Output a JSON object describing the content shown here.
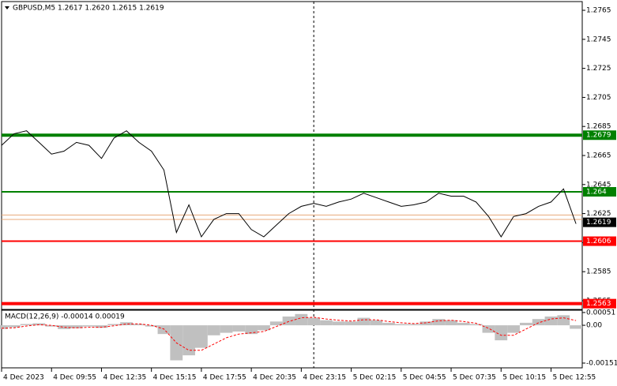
{
  "chart_data": [
    {
      "type": "line",
      "title": "GBPUSD,M5  1.2617 1.2620 1.2615 1.2619",
      "color": "#000000",
      "values": [
        1.2672,
        1.268,
        1.2682,
        1.2674,
        1.2666,
        1.2668,
        1.2674,
        1.2672,
        1.2663,
        1.2677,
        1.2682,
        1.2674,
        1.2668,
        1.2655,
        1.2612,
        1.2631,
        1.2609,
        1.2621,
        1.2625,
        1.2625,
        1.2614,
        1.2609,
        1.2617,
        1.2625,
        1.263,
        1.2632,
        1.263,
        1.2633,
        1.2635,
        1.2639,
        1.2636,
        1.2633,
        1.263,
        1.2631,
        1.2633,
        1.2639,
        1.2637,
        1.2637,
        1.2633,
        1.2623,
        1.2609,
        1.2623,
        1.2625,
        1.263,
        1.2633,
        1.2642,
        1.2618
      ],
      "xlim": [
        0,
        46.5
      ],
      "xticks": [
        {
          "value": 0,
          "label": "4 Dec 2023"
        },
        {
          "value": 4,
          "label": "4 Dec 09:55"
        },
        {
          "value": 8,
          "label": "4 Dec 12:35"
        },
        {
          "value": 12,
          "label": "4 Dec 15:15"
        },
        {
          "value": 16,
          "label": "4 Dec 17:55"
        },
        {
          "value": 20,
          "label": "4 Dec 20:35"
        },
        {
          "value": 24,
          "label": "4 Dec 23:15"
        },
        {
          "value": 28,
          "label": "5 Dec 02:15"
        },
        {
          "value": 32,
          "label": "5 Dec 04:55"
        },
        {
          "value": 36,
          "label": "5 Dec 07:35"
        },
        {
          "value": 40,
          "label": "5 Dec 10:15"
        },
        {
          "value": 44,
          "label": "5 Dec 12:55"
        }
      ],
      "ylim": [
        1.2559,
        1.2771
      ],
      "yticks": [
        1.2765,
        1.2745,
        1.2725,
        1.2705,
        1.2685,
        1.2665,
        1.2645,
        1.2625,
        1.2605,
        1.2585,
        1.2565
      ],
      "levels": [
        {
          "value": 1.2679,
          "color": "#008000",
          "style": "thick"
        },
        {
          "value": 1.264,
          "color": "#008000",
          "style": "thin"
        },
        {
          "value": 1.2606,
          "color": "#ff0000",
          "style": "thin"
        },
        {
          "value": 1.2563,
          "color": "#ff0000",
          "style": "thick"
        }
      ],
      "quote_lines": [
        {
          "value": 1.2624,
          "color": "#e8a878"
        },
        {
          "value": 1.2621,
          "color": "#e8a878"
        }
      ],
      "current_price": 1.2619,
      "separator_x": 25
    },
    {
      "type": "macd",
      "title": "MACD(12,26,9) -0.00014 0.00019",
      "ylim": [
        -0.0017,
        0.00057
      ],
      "yticks": [
        0.00051,
        {
          "value": 0,
          "label": "0.00"
        },
        -0.00151
      ],
      "series": [
        {
          "kind": "histogram",
          "color": "#c0c0c0",
          "values": [
            -0.00015,
            -8e-05,
            5e-05,
            8e-05,
            -5e-05,
            -0.00015,
            -0.00012,
            -5e-05,
            -0.0001,
            5e-05,
            0.00012,
            5e-05,
            -5e-05,
            -0.00035,
            -0.0014,
            -0.0012,
            -0.0009,
            -0.0004,
            -0.0003,
            -0.00025,
            -0.00035,
            -0.0002,
            0.00015,
            0.00035,
            0.00045,
            0.0003,
            0.0002,
            0.00015,
            0.00015,
            0.0003,
            0.0002,
            0.0001,
            5e-05,
            5e-05,
            0.00015,
            0.00025,
            0.0002,
            0.0001,
            5e-05,
            -0.0003,
            -0.0006,
            -0.0003,
            0.0001,
            0.00025,
            0.00035,
            0.0004,
            -0.00014
          ]
        },
        {
          "kind": "line",
          "color": "#ff0000",
          "values": [
            -0.00012,
            -0.0001,
            -3e-05,
            2e-05,
            0,
            -8e-05,
            -0.0001,
            -8e-05,
            -8e-05,
            -2e-05,
            5e-05,
            6e-05,
            0,
            -0.00015,
            -0.0007,
            -0.001,
            -0.001,
            -0.00075,
            -0.0005,
            -0.00035,
            -0.0003,
            -0.00025,
            -5e-05,
            0.00015,
            0.0003,
            0.00032,
            0.00025,
            0.0002,
            0.00017,
            0.00022,
            0.00022,
            0.00015,
            0.0001,
            7e-05,
            0.0001,
            0.00018,
            0.0002,
            0.00015,
            8e-05,
            -0.00012,
            -0.0004,
            -0.0004,
            -0.00015,
            0.0001,
            0.00025,
            0.0003,
            0.00019
          ]
        }
      ]
    }
  ]
}
